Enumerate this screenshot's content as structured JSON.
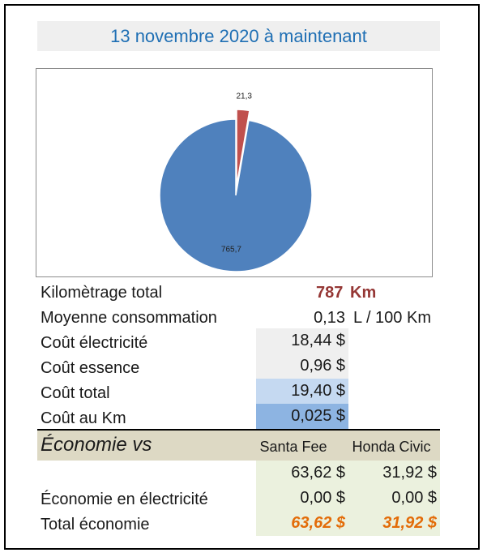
{
  "title": "13 novembre 2020 à maintenant",
  "chart_data": {
    "type": "pie",
    "values": [
      21.3,
      765.7
    ],
    "data_labels": [
      "21,3",
      "765,7"
    ],
    "colors": [
      "#c0504d",
      "#4f81bd"
    ],
    "exploded": [
      true,
      false
    ]
  },
  "summary": {
    "km_label": "Kilomètrage total",
    "km_value": "787",
    "km_unit": "Km",
    "conso_label": "Moyenne consommation",
    "conso_value": "0,13",
    "conso_unit": "L / 100 Km",
    "elec_label": "Coût électricité",
    "elec_value": "18,44 $",
    "essence_label": "Coût essence",
    "essence_value": "0,96 $",
    "total_label": "Coût total",
    "total_value": "19,40 $",
    "perkm_label": "Coût au Km",
    "perkm_value": "0,025 $"
  },
  "economie": {
    "title": "Économie vs",
    "col1": "Santa Fee",
    "col2": "Honda Civic",
    "row1_col1": "63,62 $",
    "row1_col2": "31,92 $",
    "elec_label": "Économie en électricité",
    "elec_col1": "0,00 $",
    "elec_col2": "0,00 $",
    "total_label": "Total économie",
    "total_col1": "63,62 $",
    "total_col2": "31,92 $"
  }
}
